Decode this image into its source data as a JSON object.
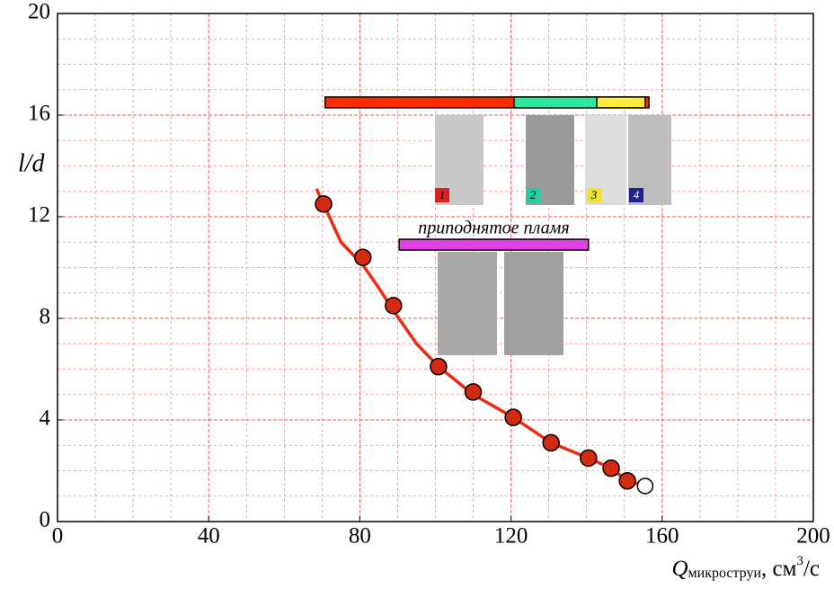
{
  "chart_data": {
    "type": "scatter",
    "xlabel": {
      "symbol": "Q",
      "subscript": "микроструи",
      "unit": ", см",
      "power": "3",
      "unit_end": "/с"
    },
    "ylabel": "l/d",
    "x": [
      70.4,
      80.8,
      88.9,
      100.8,
      110,
      120.6,
      130.6,
      140.5,
      146.5,
      150.8
    ],
    "values": [
      12.5,
      10.4,
      8.5,
      6.1,
      5.1,
      4.1,
      3.1,
      2.5,
      2.1,
      1.6
    ],
    "color": "#d42a12",
    "open_point": {
      "x": 155.5,
      "y": 1.4
    },
    "curve": {
      "x": [
        68.5,
        70.4,
        75,
        80.8,
        85,
        88.9,
        95,
        100.8,
        110,
        120.6,
        130.6,
        140.5,
        146.5,
        150.8,
        155.5
      ],
      "values": [
        13.1,
        12.5,
        11,
        10.1,
        9.2,
        8.3,
        7,
        6.1,
        5.0,
        4.1,
        3.1,
        2.5,
        2.1,
        1.6,
        1.4
      ],
      "color": "#f02a10"
    },
    "bars": [
      {
        "x": [
          70.8,
          156.5
        ],
        "y": 16.5,
        "color": "#ff2a00"
      },
      {
        "x": [
          120.8,
          142.7
        ],
        "y": 16.5,
        "color": "#2ee8a0"
      },
      {
        "x": [
          142.7,
          155.5
        ],
        "y": 16.5,
        "color": "#ffe93a"
      },
      {
        "x": [
          90.4,
          140.5
        ],
        "y": 10.9,
        "color": "#e040e8"
      }
    ],
    "annotation": "приподнятое пламя",
    "photo_labels": [
      "1",
      "2",
      "3",
      "4"
    ],
    "xlim": [
      0,
      200
    ],
    "ylim": [
      0,
      20
    ],
    "xticks": [
      0,
      40,
      80,
      120,
      160,
      200
    ],
    "yticks": [
      0,
      4,
      8,
      12,
      16,
      20
    ],
    "grid_color": "#ef5a5a"
  }
}
